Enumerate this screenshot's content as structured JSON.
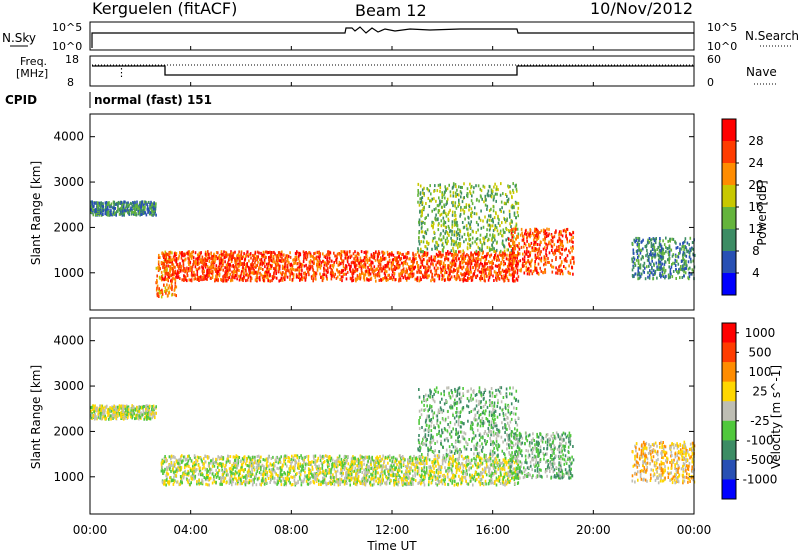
{
  "header": {
    "radar": "Kerguelen (fitACF)",
    "beam": "Beam 12",
    "date": "10/Nov/2012"
  },
  "noise_panel": {
    "left_label": "N.Sky",
    "right_label": "N.Search",
    "ticks": [
      "10^5",
      "10^0"
    ]
  },
  "freq_panel": {
    "left_label_1": "Freq.",
    "left_label_2": "[MHz]",
    "left_ticks": [
      "18",
      "8"
    ],
    "right_ticks": [
      "60",
      "0"
    ],
    "right_label": "Nave"
  },
  "cpid": {
    "label": "CPID",
    "value": "normal (fast) 151"
  },
  "x_axis": {
    "title": "Time UT",
    "ticks": [
      "00:00",
      "04:00",
      "08:00",
      "12:00",
      "16:00",
      "20:00",
      "00:00"
    ]
  },
  "chart_data": [
    {
      "type": "heatmap",
      "panel": "power",
      "ylabel": "Slant Range [km]",
      "ylim": [
        180,
        4500
      ],
      "yticks": [
        "1000",
        "2000",
        "3000",
        "4000"
      ],
      "xlim_hours": [
        0,
        24
      ],
      "colorbar": {
        "label": "Power [dB]",
        "ticks": [
          "4",
          "8",
          "12",
          "16",
          "20",
          "24",
          "28"
        ],
        "colors": [
          "#0000ff",
          "#2850b4",
          "#3c8c64",
          "#64b43c",
          "#c8c800",
          "#ff8c00",
          "#ff3c00",
          "#ff0000"
        ]
      },
      "bands": [
        {
          "t": [
            0,
            2.6
          ],
          "r": [
            2300,
            2600
          ],
          "level": 2
        },
        {
          "t": [
            2.6,
            3.4
          ],
          "r": [
            500,
            1500
          ],
          "level": 5
        },
        {
          "t": [
            2.8,
            17.0
          ],
          "r": [
            850,
            1500
          ],
          "level": 6
        },
        {
          "t": [
            13.0,
            17.0
          ],
          "r": [
            1500,
            3000
          ],
          "level": 3
        },
        {
          "t": [
            16.6,
            19.2
          ],
          "r": [
            1000,
            2000
          ],
          "level": 6
        },
        {
          "t": [
            21.5,
            24.0
          ],
          "r": [
            900,
            1800
          ],
          "level": 2
        }
      ]
    },
    {
      "type": "heatmap",
      "panel": "velocity",
      "ylabel": "Slant Range [km]",
      "ylim": [
        180,
        4500
      ],
      "yticks": [
        "1000",
        "2000",
        "3000",
        "4000"
      ],
      "xlim_hours": [
        0,
        24
      ],
      "colorbar": {
        "label": "Velocity [m s^-1]",
        "ticks": [
          "1000",
          "500",
          "100",
          "25",
          "-25",
          "-100",
          "-500",
          "-1000"
        ],
        "colors": [
          "#0000ff",
          "#2850b4",
          "#3c8c64",
          "#50c83c",
          "#bebeb4",
          "#ffd700",
          "#ff8c00",
          "#ff3c00",
          "#ff0000"
        ]
      },
      "bands": [
        {
          "t": [
            0,
            2.6
          ],
          "r": [
            2300,
            2600
          ],
          "level": 4
        },
        {
          "t": [
            2.8,
            17.0
          ],
          "r": [
            850,
            1500
          ],
          "level": 4
        },
        {
          "t": [
            13.0,
            17.0
          ],
          "r": [
            1500,
            3000
          ],
          "level": 3
        },
        {
          "t": [
            16.6,
            19.2
          ],
          "r": [
            1000,
            2000
          ],
          "level": 3
        },
        {
          "t": [
            21.5,
            24.0
          ],
          "r": [
            900,
            1800
          ],
          "level": 5
        }
      ]
    }
  ]
}
